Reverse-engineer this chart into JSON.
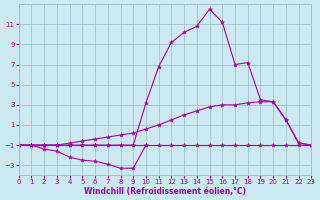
{
  "xlabel": "Windchill (Refroidissement éolien,°C)",
  "xlim": [
    0,
    23
  ],
  "ylim": [
    -4,
    13
  ],
  "yticks": [
    -3,
    -1,
    1,
    3,
    5,
    7,
    9,
    11
  ],
  "xticks": [
    0,
    1,
    2,
    3,
    4,
    5,
    6,
    7,
    8,
    9,
    10,
    11,
    12,
    13,
    14,
    15,
    16,
    17,
    18,
    19,
    20,
    21,
    22,
    23
  ],
  "bg_color": "#cce8f0",
  "grid_color": "#99bbcc",
  "line_color": "#aa00aa",
  "lines": [
    {
      "x": [
        0,
        1,
        2,
        3,
        4,
        5,
        6,
        7,
        8,
        9,
        10,
        11,
        12,
        13,
        14,
        15,
        16,
        17,
        18,
        19,
        20,
        21,
        22,
        23
      ],
      "y": [
        -1,
        -1,
        -1,
        -1,
        -1,
        -1,
        -1,
        -1,
        -1,
        -1,
        -1,
        -1,
        -1,
        -1,
        -1,
        -1,
        -1,
        -1,
        -1,
        -1,
        -1,
        -1,
        -1,
        -1
      ]
    },
    {
      "x": [
        0,
        1,
        2,
        3,
        4,
        5,
        6,
        7,
        8,
        9,
        10
      ],
      "y": [
        -1,
        -1,
        -1.4,
        -1.6,
        -2.2,
        -2.5,
        -2.6,
        -2.9,
        -3.3,
        -3.3,
        -1.0
      ]
    },
    {
      "x": [
        0,
        1,
        2,
        3,
        4,
        5,
        6,
        7,
        8,
        9,
        10,
        11,
        12,
        13,
        14,
        15,
        16,
        17,
        18,
        19,
        20,
        21,
        22,
        23
      ],
      "y": [
        -1,
        -1,
        -1,
        -1,
        -0.8,
        -0.6,
        -0.4,
        -0.2,
        0.0,
        0.2,
        0.6,
        1.0,
        1.5,
        2.0,
        2.4,
        2.8,
        3.0,
        3.0,
        3.2,
        3.3,
        3.3,
        1.5,
        -0.8,
        -1
      ]
    },
    {
      "x": [
        0,
        1,
        2,
        3,
        4,
        5,
        6,
        7,
        8,
        9,
        10,
        11,
        12,
        13,
        14,
        15,
        16,
        17,
        18,
        19,
        20,
        21,
        22,
        23
      ],
      "y": [
        -1,
        -1,
        -1,
        -1,
        -1,
        -1,
        -1,
        -1,
        -1,
        -1,
        3.2,
        6.8,
        9.2,
        10.2,
        10.8,
        12.5,
        11.2,
        7.0,
        7.2,
        3.5,
        3.3,
        1.5,
        -0.8,
        -1
      ]
    }
  ]
}
